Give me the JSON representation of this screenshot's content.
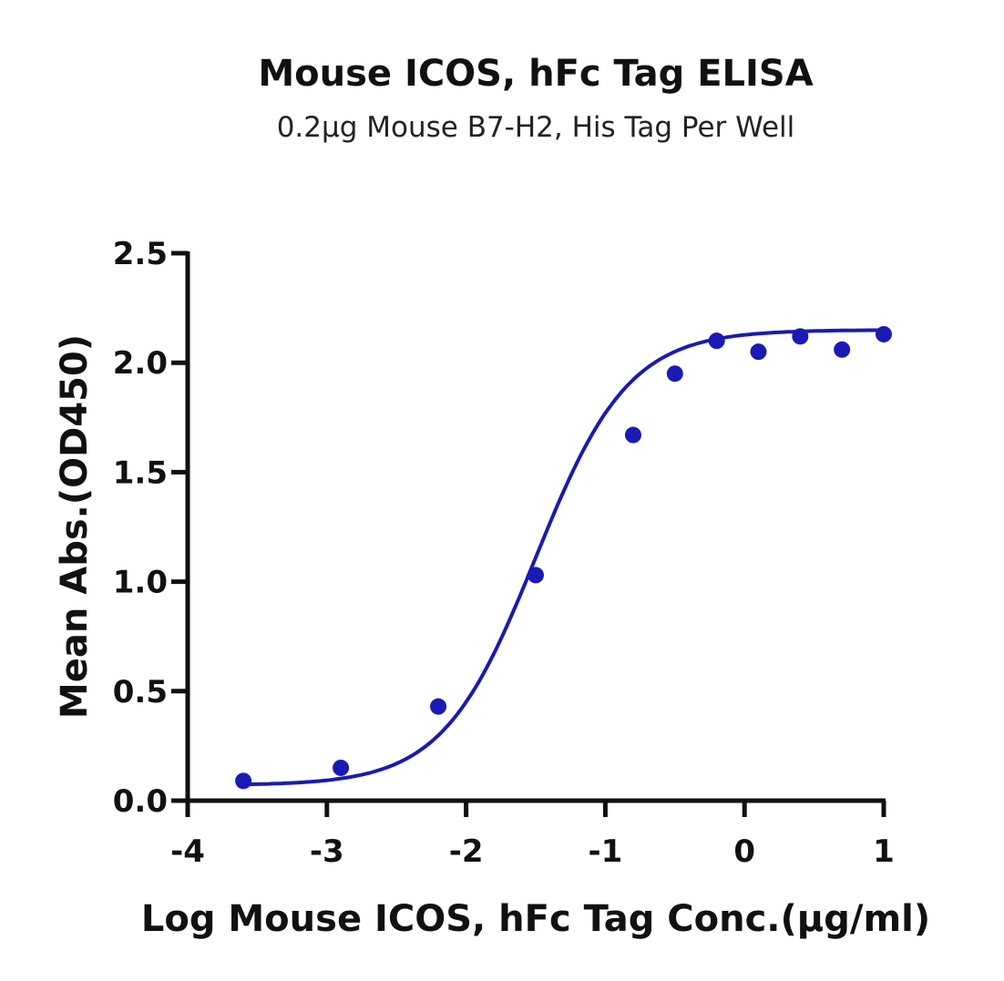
{
  "chart_data": {
    "type": "scatter",
    "title": "Mouse ICOS, hFc Tag ELISA",
    "subtitle": "0.2µg Mouse B7-H2, His Tag Per Well",
    "xlabel": "Log Mouse ICOS, hFc Tag Conc.(µg/ml)",
    "ylabel": "Mean Abs.(OD450)",
    "xlim": [
      -4,
      1
    ],
    "ylim": [
      0,
      2.5
    ],
    "x_ticks": [
      -4,
      -3,
      -2,
      -1,
      0,
      1
    ],
    "x_tick_labels": [
      "-4",
      "-3",
      "-2",
      "-1",
      "0",
      "1"
    ],
    "y_ticks": [
      0,
      0.5,
      1,
      1.5,
      2,
      2.5
    ],
    "y_tick_labels": [
      "0.0",
      "0.5",
      "1.0",
      "1.5",
      "2.0",
      "2.5"
    ],
    "grid": false,
    "color": "#1a1ab4",
    "series": [
      {
        "x": [
          -3.6,
          -2.9,
          -2.2,
          -1.5,
          -0.8,
          -0.5,
          -0.2,
          0.1,
          0.4,
          0.7,
          1.0
        ],
        "y": [
          0.09,
          0.15,
          0.43,
          1.03,
          1.67,
          1.95,
          2.1,
          2.05,
          2.12,
          2.06,
          2.13
        ]
      }
    ],
    "fit_curve": {
      "model": "4PL",
      "bottom": 0.07,
      "top": 2.15,
      "log_ec50": -1.5,
      "hill_slope": 1.3
    }
  }
}
